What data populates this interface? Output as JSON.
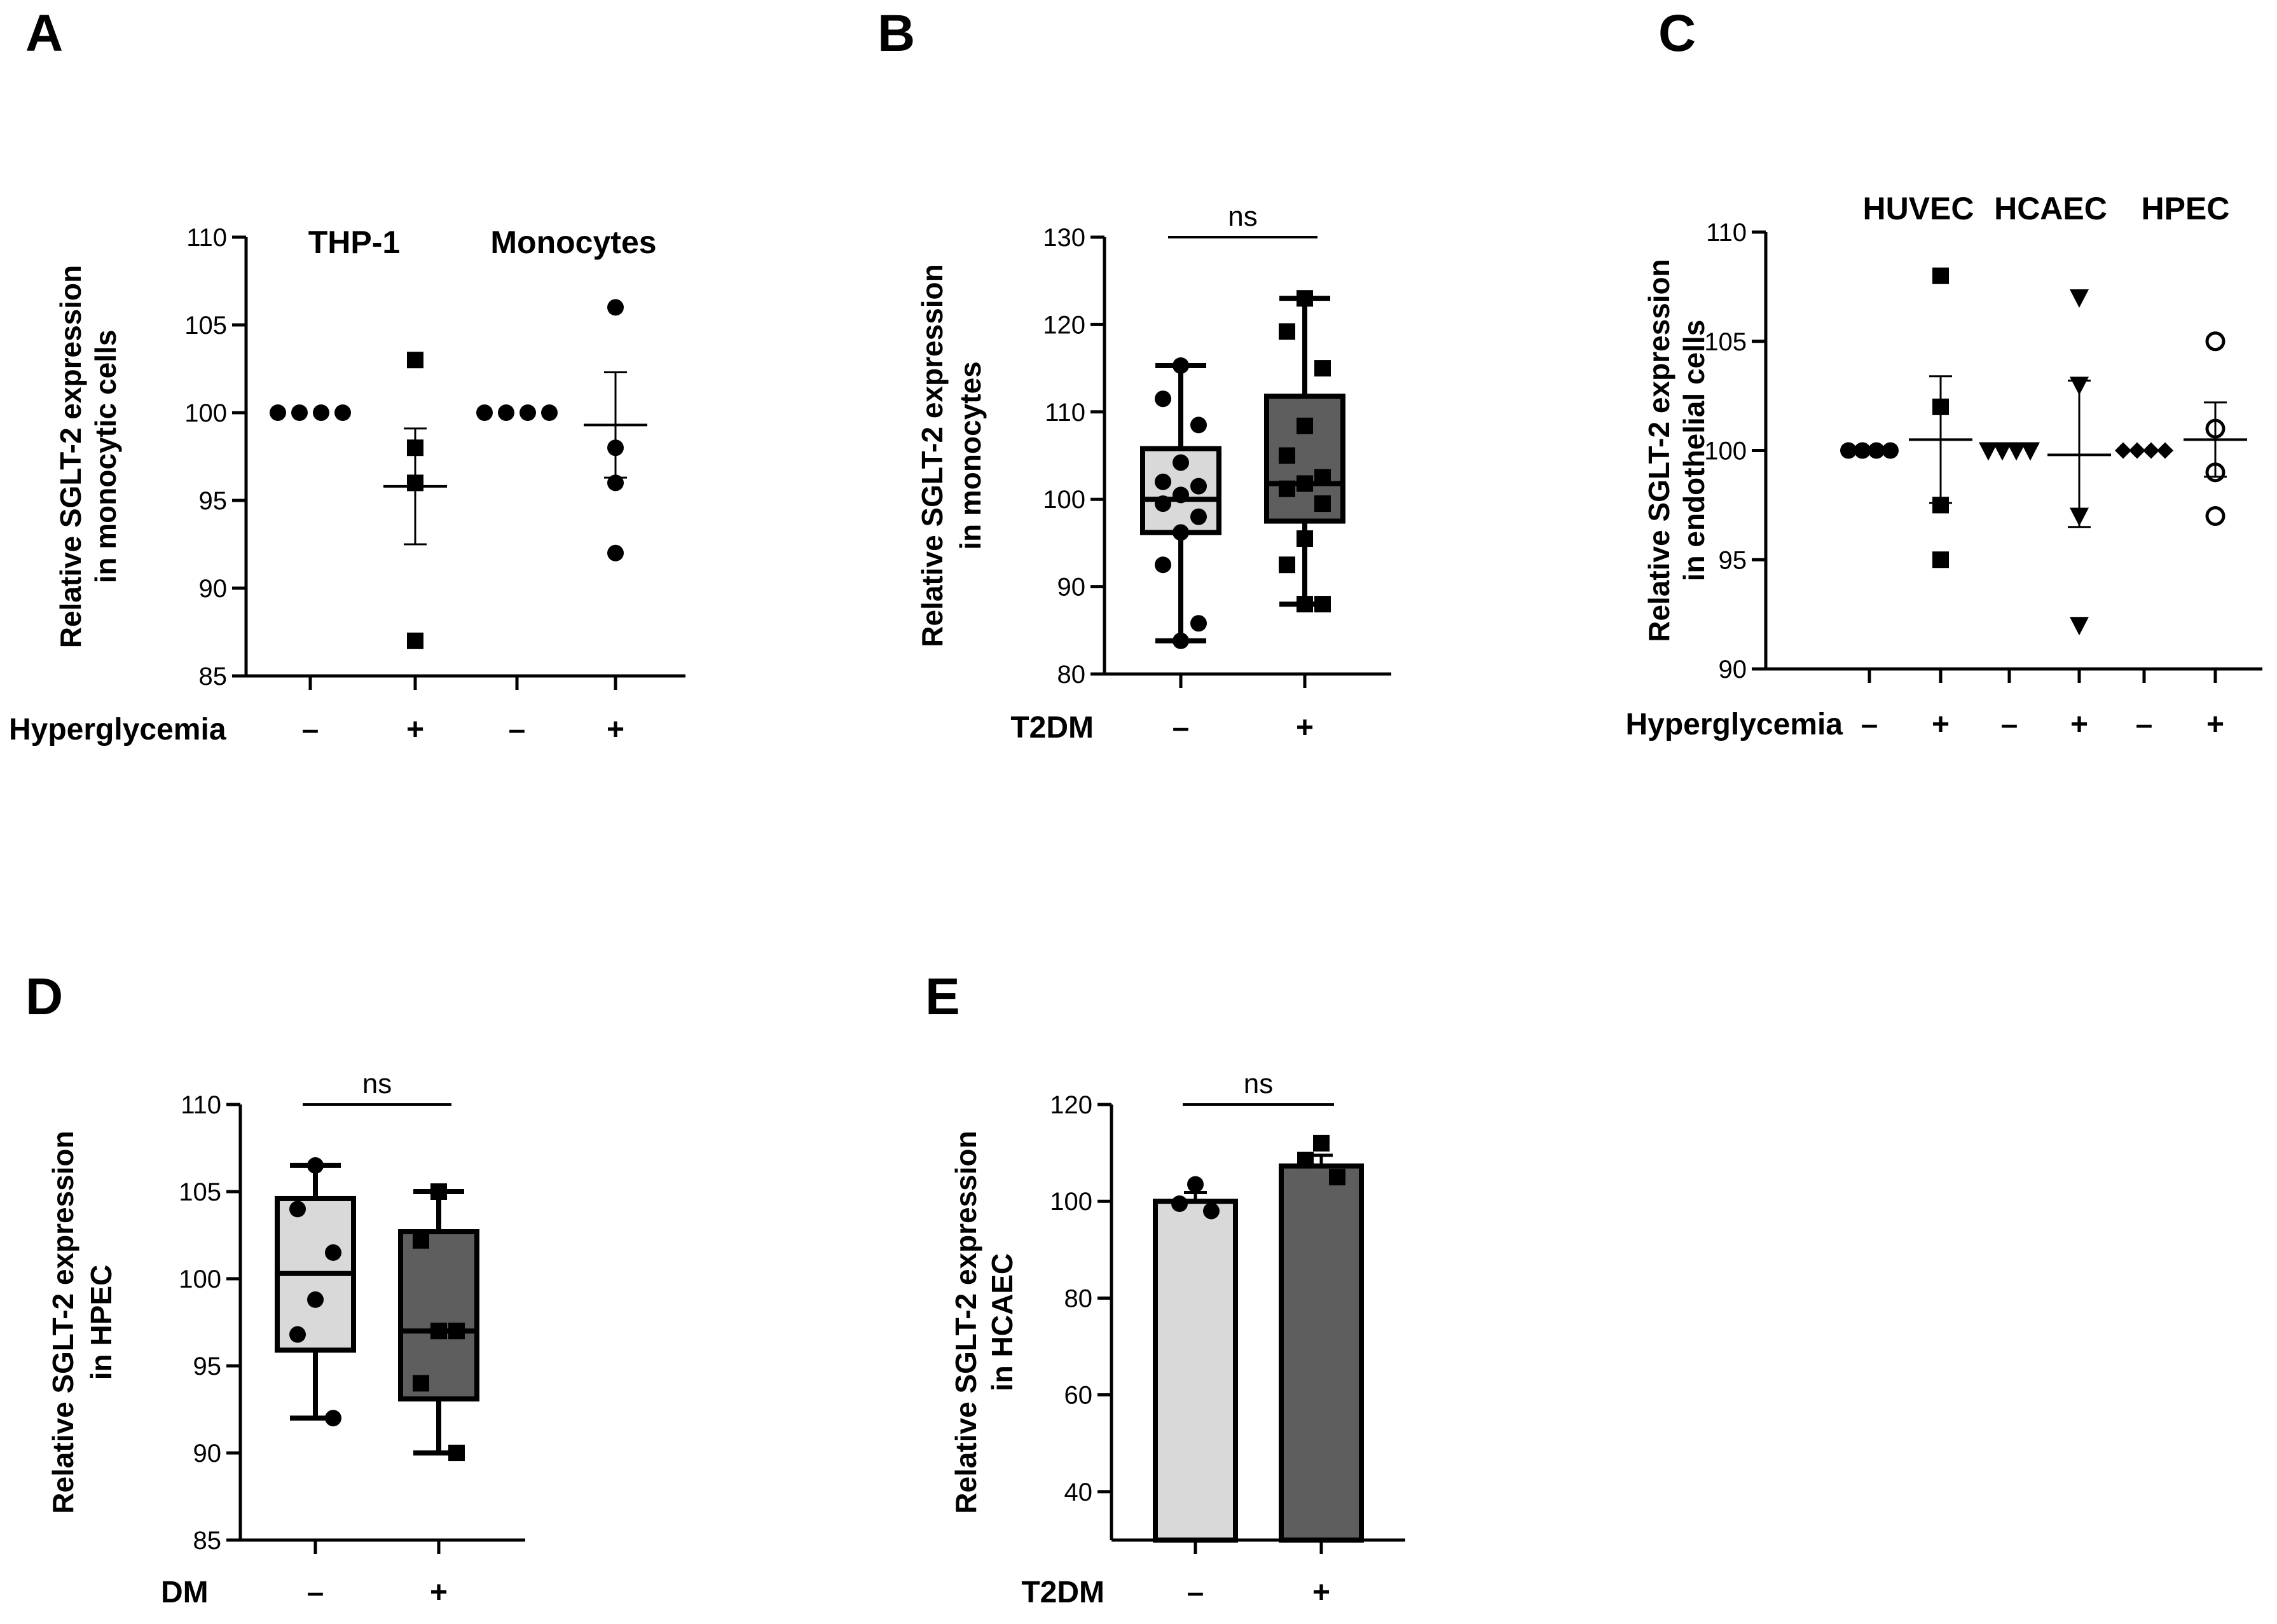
{
  "chart_data": [
    {
      "panel": "A",
      "type": "scatter",
      "ylabel_lines": [
        "Relative SGLT-2 expression",
        "in monocytic cells"
      ],
      "ylim": [
        85,
        110
      ],
      "yticks": [
        85,
        90,
        95,
        100,
        105,
        110
      ],
      "condition_label": "Hyperglycemia",
      "x_signs": [
        "–",
        "+",
        "–",
        "+"
      ],
      "group_labels": [
        "THP-1",
        "Monocytes"
      ],
      "series": [
        {
          "marker": "circle",
          "points": [
            100,
            100,
            100,
            100
          ]
        },
        {
          "marker": "square",
          "points": [
            103,
            98,
            96,
            87
          ],
          "mean": 95.8,
          "sem_low": 92.5,
          "sem_high": 99.1
        },
        {
          "marker": "circle",
          "points": [
            100,
            100,
            100,
            100
          ]
        },
        {
          "marker": "circle",
          "points": [
            106,
            98,
            96,
            92
          ],
          "mean": 99.3,
          "sem_low": 96.3,
          "sem_high": 102.3
        }
      ]
    },
    {
      "panel": "B",
      "type": "box",
      "ylabel_lines": [
        "Relative SGLT-2 expression",
        "in monocytes"
      ],
      "ylim": [
        80,
        130
      ],
      "yticks": [
        80,
        90,
        100,
        110,
        120,
        130
      ],
      "condition_label": "T2DM",
      "x_signs": [
        "–",
        "+"
      ],
      "significance": "ns",
      "series": [
        {
          "fill": "#d9d9d9",
          "marker": "circle",
          "min": 83.8,
          "q1": 96.2,
          "median": 100,
          "q3": 105.8,
          "max": 115.3,
          "points": [
            115.3,
            111.5,
            108.5,
            104.2,
            102,
            101.5,
            100.5,
            99.5,
            98,
            96.2,
            92.5,
            85.8,
            83.8
          ]
        },
        {
          "fill": "#5e5e5e",
          "marker": "square",
          "min": 88,
          "q1": 97.5,
          "median": 101.8,
          "q3": 111.8,
          "max": 123,
          "points": [
            123,
            119.2,
            115,
            108.4,
            105,
            102.5,
            101.8,
            101.2,
            99.5,
            95.5,
            92.5,
            88,
            88
          ]
        }
      ]
    },
    {
      "panel": "C",
      "type": "scatter",
      "ylabel_lines": [
        "Relative SGLT-2 expression",
        "in endothelial cells"
      ],
      "ylim": [
        90,
        110
      ],
      "yticks": [
        90,
        95,
        100,
        105,
        110
      ],
      "condition_label": "Hyperglycemia",
      "x_signs": [
        "–",
        "+",
        "–",
        "+",
        "–",
        "+"
      ],
      "group_labels": [
        "HUVEC",
        "HCAEC",
        "HPEC"
      ],
      "series": [
        {
          "marker": "circle",
          "points": [
            100,
            100,
            100,
            100
          ]
        },
        {
          "marker": "square",
          "points": [
            108,
            102,
            97.5,
            95
          ],
          "mean": 100.5,
          "sem_low": 97.6,
          "sem_high": 103.4
        },
        {
          "marker": "triangle",
          "points": [
            100,
            100,
            100,
            100
          ]
        },
        {
          "marker": "triangle",
          "points": [
            107,
            103,
            97,
            92
          ],
          "mean": 99.8,
          "sem_low": 96.5,
          "sem_high": 103.2
        },
        {
          "marker": "diamond",
          "points": [
            100,
            100,
            100,
            100
          ]
        },
        {
          "marker": "open-circle",
          "points": [
            105,
            101,
            99,
            97
          ],
          "mean": 100.5,
          "sem_low": 98.8,
          "sem_high": 102.2
        }
      ]
    },
    {
      "panel": "D",
      "type": "box",
      "ylabel_lines": [
        "Relative SGLT-2 expression",
        "in HPEC"
      ],
      "ylim": [
        85,
        110
      ],
      "yticks": [
        85,
        90,
        95,
        100,
        105,
        110
      ],
      "condition_label": "DM",
      "x_signs": [
        "–",
        "+"
      ],
      "significance": "ns",
      "series": [
        {
          "fill": "#d9d9d9",
          "marker": "circle",
          "min": 92,
          "q1": 95.9,
          "median": 100.3,
          "q3": 104.6,
          "max": 106.5,
          "points": [
            106.5,
            104,
            101.5,
            98.8,
            96.8,
            92
          ]
        },
        {
          "fill": "#5e5e5e",
          "marker": "square",
          "min": 90,
          "q1": 93.1,
          "median": 97,
          "q3": 102.7,
          "max": 105,
          "points": [
            105,
            102.2,
            97,
            97,
            94,
            90
          ]
        }
      ]
    },
    {
      "panel": "E",
      "type": "bar",
      "ylabel_lines": [
        "Relative SGLT-2 expression",
        "in HCAEC"
      ],
      "ylim": [
        30,
        120
      ],
      "yticks": [
        40,
        60,
        80,
        100,
        120
      ],
      "condition_label": "T2DM",
      "x_signs": [
        "–",
        "+"
      ],
      "significance": "ns",
      "series": [
        {
          "fill": "#d9d9d9",
          "marker": "circle",
          "value": 100,
          "sem": 1.8,
          "points": [
            103.5,
            99.5,
            98
          ]
        },
        {
          "fill": "#5e5e5e",
          "marker": "square",
          "value": 107.3,
          "sem": 2.2,
          "points": [
            112,
            108.5,
            105
          ]
        }
      ]
    }
  ]
}
